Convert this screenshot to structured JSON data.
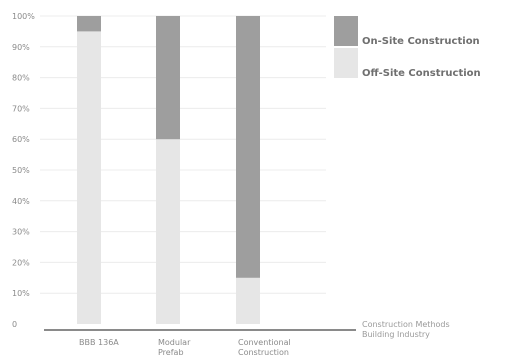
{
  "chart_data": {
    "type": "bar",
    "stacked": true,
    "categories": [
      [
        "BBB 136A"
      ],
      [
        "Modular",
        "Prefab"
      ],
      [
        "Conventional",
        "Construction"
      ]
    ],
    "series": [
      {
        "name": "Off-Site Construction",
        "color": "#e6e6e6",
        "values": [
          95,
          60,
          15
        ]
      },
      {
        "name": "On-Site Construction",
        "color": "#9e9e9e",
        "values": [
          5,
          40,
          85
        ]
      }
    ],
    "yticks": [
      "0",
      "10%",
      "20%",
      "30%",
      "40%",
      "50%",
      "60%",
      "70%",
      "80%",
      "90%",
      "100%"
    ],
    "ylim": [
      0,
      100
    ],
    "xlabel": [
      "Construction Methods",
      "Building Industry"
    ],
    "ylabel": "",
    "grid": true,
    "legend_position": "right"
  }
}
